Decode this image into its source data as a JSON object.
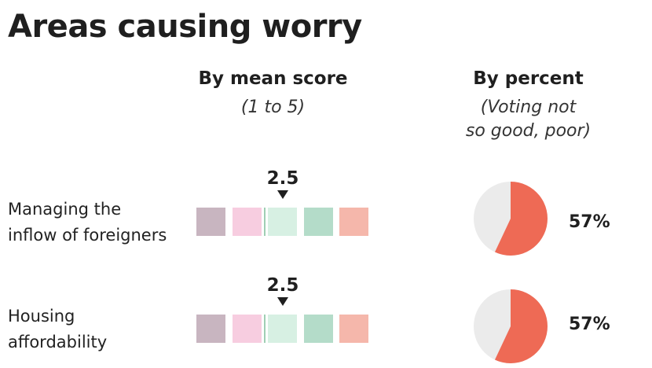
{
  "title": "Areas causing worry",
  "columns": {
    "mean": {
      "heading": "By mean score",
      "sub": "(1 to 5)"
    },
    "percent": {
      "heading": "By percent",
      "sub_line1": "(Voting not",
      "sub_line2": "so good, poor)"
    }
  },
  "colors": {
    "scale": [
      "#c8b5c0",
      "#f7cde0",
      "#d7f0e3",
      "#b4dcc9",
      "#f5b7ab"
    ],
    "marker": "#9fcfb4",
    "pie_highlight": "#ee6a55",
    "pie_rest": "#ebebeb"
  },
  "chart_data": {
    "type": "table",
    "title": "Areas causing worry",
    "mean_score_range": [
      1,
      5
    ],
    "rows": [
      {
        "label_line1": "Managing the",
        "label_line2": "inflow of foreigners",
        "mean_score": 2.5,
        "mean_score_label": "2.5",
        "percent": 57,
        "percent_label": "57%"
      },
      {
        "label_line1": "Housing",
        "label_line2": "affordability",
        "mean_score": 2.5,
        "mean_score_label": "2.5",
        "percent": 57,
        "percent_label": "57%"
      }
    ]
  }
}
